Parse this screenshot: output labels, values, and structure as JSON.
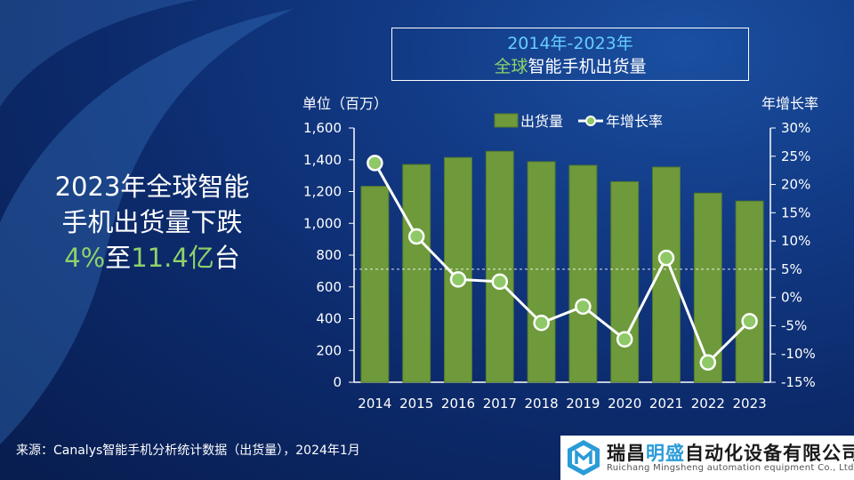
{
  "headline": {
    "line1": "2023年全球智能",
    "line2": "手机出货量下跌",
    "line3_pct": "4%",
    "line3_mid": "至",
    "line3_num": "11.4亿",
    "line3_end": "台"
  },
  "title": {
    "line1": "2014年-2023年",
    "line2_prefix": "全球",
    "line2_rest": "智能手机出货量"
  },
  "left_unit": "单位（百万）",
  "right_unit": "年增长率",
  "source": "来源：Canalys智能手机分析统计数据（出货量），2024年1月",
  "logo": {
    "name_a": "瑞昌",
    "name_b": "明盛",
    "name_c": "自动化设备有限公司",
    "sub": "Ruichang Mingsheng automation equipment Co., Ltd"
  },
  "colors": {
    "bar": "#6e9a3c",
    "bar_stroke": "#557a2b",
    "line": "#ffffff",
    "marker": "#8fc866",
    "accent_green": "#8fd16a",
    "accent_blue": "#66ccff"
  },
  "chart_data": {
    "type": "bar+line",
    "categories": [
      "2014",
      "2015",
      "2016",
      "2017",
      "2018",
      "2019",
      "2020",
      "2021",
      "2022",
      "2023"
    ],
    "series": [
      {
        "name": "出货量",
        "type": "bar",
        "axis": "left",
        "values": [
          1233,
          1370,
          1414,
          1453,
          1388,
          1365,
          1262,
          1354,
          1190,
          1140
        ]
      },
      {
        "name": "年增长率",
        "type": "line",
        "axis": "right",
        "values": [
          23.8,
          10.8,
          3.2,
          2.8,
          -4.5,
          -1.6,
          -7.4,
          7.0,
          -11.5,
          -4.2
        ]
      }
    ],
    "left_axis": {
      "ylim": [
        0,
        1600
      ],
      "ticks": [
        0,
        200,
        400,
        600,
        800,
        1000,
        1200,
        1400,
        1600
      ],
      "tick_labels": [
        "0",
        "200",
        "400",
        "600",
        "800",
        "1,000",
        "1,200",
        "1,400",
        "1,600"
      ]
    },
    "right_axis": {
      "ylim": [
        -15,
        30
      ],
      "ticks": [
        30,
        25,
        20,
        15,
        10,
        5,
        0,
        -5,
        -10,
        -15
      ],
      "tick_labels": [
        "30%",
        "25%",
        "20%",
        "15%",
        "10%",
        "5%",
        "0%",
        "-5%",
        "-10%",
        "-15%"
      ]
    },
    "reference_line": {
      "axis": "right",
      "value": 5,
      "style": "dashed"
    },
    "legend": {
      "position": "top",
      "items": [
        "出货量",
        "年增长率"
      ]
    }
  }
}
